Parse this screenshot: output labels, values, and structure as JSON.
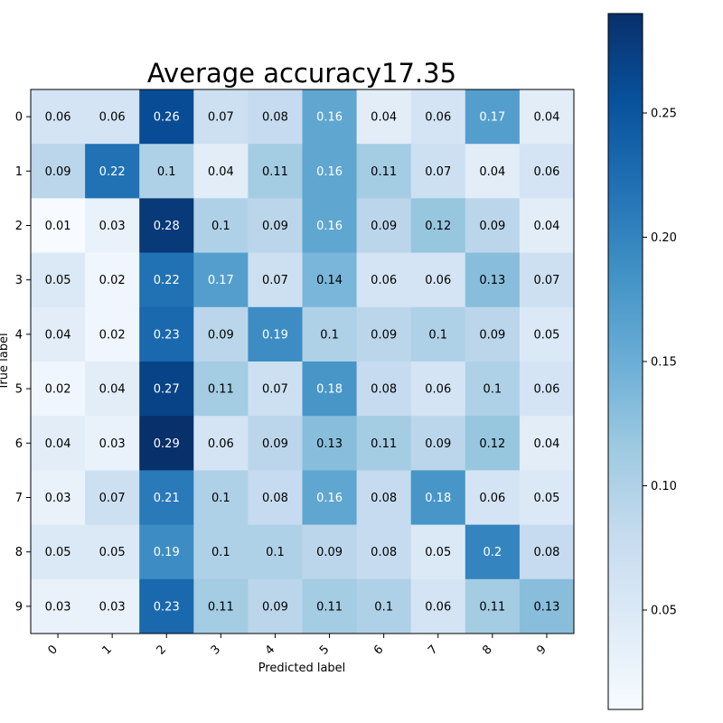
{
  "chart_data": {
    "type": "heatmap",
    "title": "Average accuracy17.35",
    "xlabel": "Predicted label",
    "ylabel": "True label",
    "x_categories": [
      "0",
      "1",
      "2",
      "3",
      "4",
      "5",
      "6",
      "7",
      "8",
      "9"
    ],
    "y_categories": [
      "0",
      "1",
      "2",
      "3",
      "4",
      "5",
      "6",
      "7",
      "8",
      "9"
    ],
    "values": [
      [
        0.06,
        0.06,
        0.26,
        0.07,
        0.08,
        0.16,
        0.04,
        0.06,
        0.17,
        0.04
      ],
      [
        0.09,
        0.22,
        0.1,
        0.04,
        0.11,
        0.16,
        0.11,
        0.07,
        0.04,
        0.06
      ],
      [
        0.01,
        0.03,
        0.28,
        0.1,
        0.09,
        0.16,
        0.09,
        0.12,
        0.09,
        0.04
      ],
      [
        0.05,
        0.02,
        0.22,
        0.17,
        0.07,
        0.14,
        0.06,
        0.06,
        0.13,
        0.07
      ],
      [
        0.04,
        0.02,
        0.23,
        0.09,
        0.19,
        0.1,
        0.09,
        0.1,
        0.09,
        0.05
      ],
      [
        0.02,
        0.04,
        0.27,
        0.11,
        0.07,
        0.18,
        0.08,
        0.06,
        0.1,
        0.06
      ],
      [
        0.04,
        0.03,
        0.29,
        0.06,
        0.09,
        0.13,
        0.11,
        0.09,
        0.12,
        0.04
      ],
      [
        0.03,
        0.07,
        0.21,
        0.1,
        0.08,
        0.16,
        0.08,
        0.18,
        0.06,
        0.05
      ],
      [
        0.05,
        0.05,
        0.19,
        0.1,
        0.1,
        0.09,
        0.08,
        0.05,
        0.2,
        0.08
      ],
      [
        0.03,
        0.03,
        0.23,
        0.11,
        0.09,
        0.11,
        0.1,
        0.06,
        0.11,
        0.13
      ]
    ],
    "colormap": "Blues",
    "color_range": [
      0.01,
      0.29
    ],
    "colorbar_ticks": [
      "0.05",
      "0.10",
      "0.15",
      "0.20",
      "0.25"
    ],
    "colorbar_tick_values": [
      0.05,
      0.1,
      0.15,
      0.2,
      0.25
    ],
    "colorbar_placement": "right",
    "x_tick_rotation": 45,
    "grid": false
  }
}
